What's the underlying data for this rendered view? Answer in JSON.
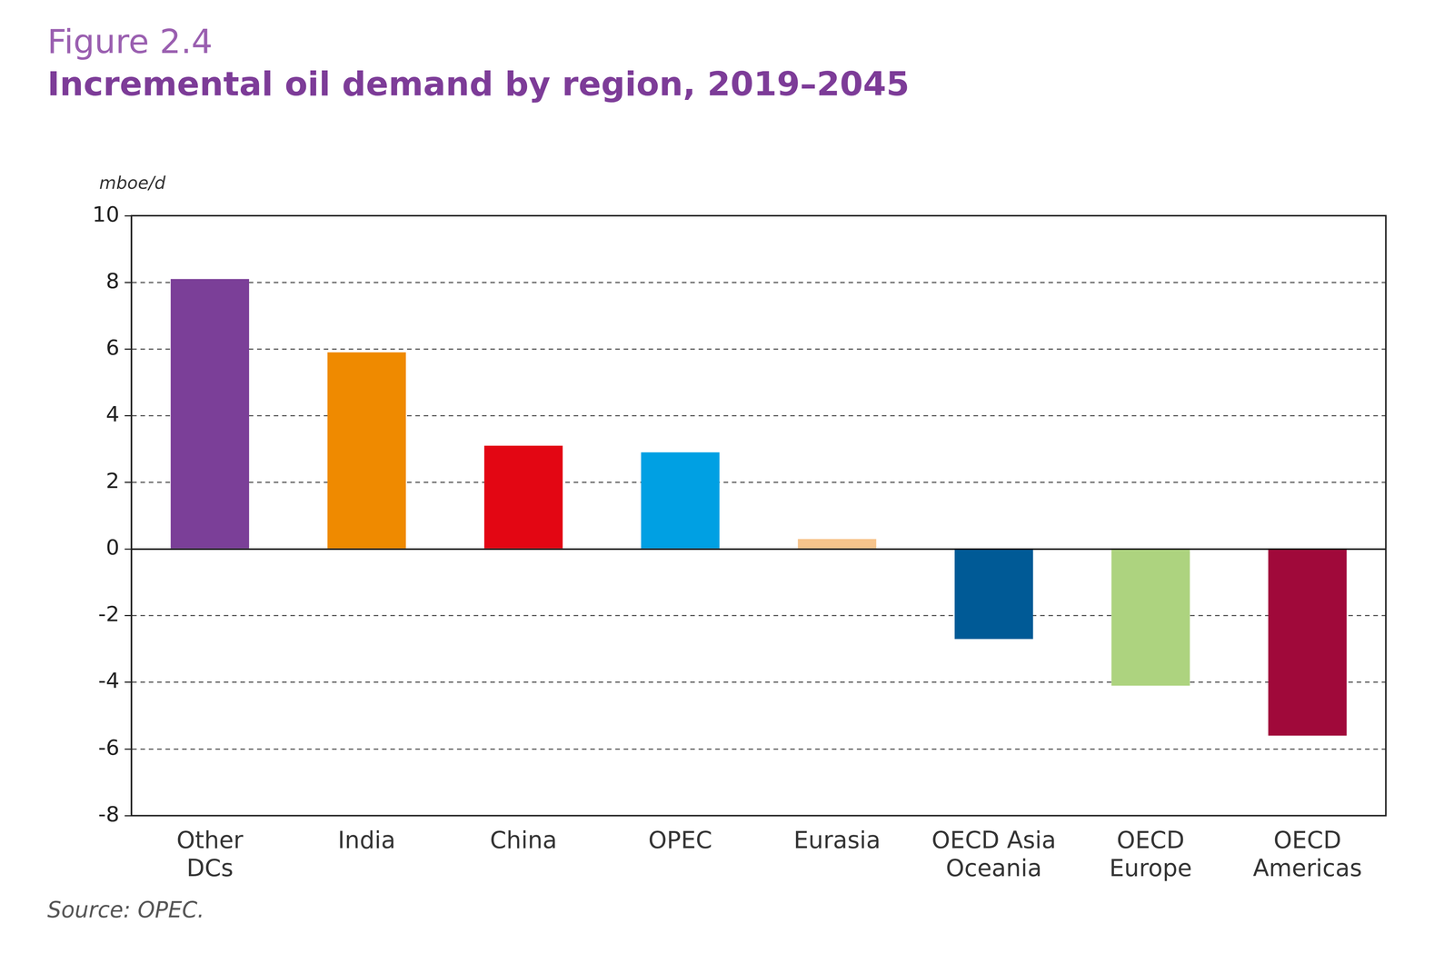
{
  "chart_data": {
    "type": "bar",
    "subtitle": "Figure 2.4",
    "title": "Incremental oil demand by region, 2019–2045",
    "y_label": "mboe/d",
    "source": "Source: OPEC.",
    "categories": [
      [
        "Other",
        "DCs"
      ],
      "India",
      "China",
      "OPEC",
      "Eurasia",
      [
        "OECD Asia",
        "Oceania"
      ],
      [
        "OECD",
        "Europe"
      ],
      [
        "OECD",
        "Americas"
      ]
    ],
    "values": [
      8.1,
      5.9,
      3.1,
      2.9,
      0.3,
      -2.7,
      -4.1,
      -5.6
    ],
    "colors": [
      "#7b3f98",
      "#ef8a00",
      "#e30613",
      "#00a0e3",
      "#f6c48c",
      "#005a96",
      "#add37f",
      "#a0093a"
    ],
    "ylim": [
      -8,
      10
    ],
    "yticks": [
      -8,
      -6,
      -4,
      -2,
      0,
      2,
      4,
      6,
      8,
      10
    ],
    "grid": true,
    "data_labels": false
  }
}
